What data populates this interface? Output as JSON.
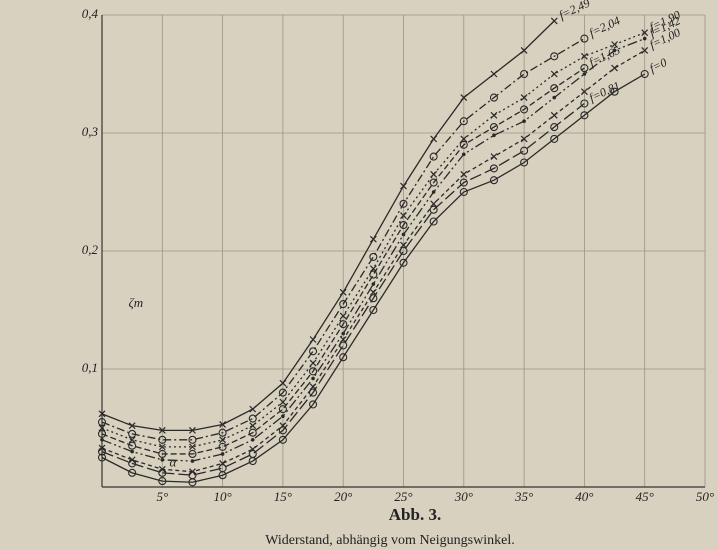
{
  "chart_data": {
    "type": "line",
    "title": "Abb. 3.",
    "subtitle": "Widerstand, abhängig vom Neigungswinkel.",
    "xlabel": "α",
    "ylabel": "ζm",
    "x": [
      0,
      2.5,
      5,
      7.5,
      10,
      12.5,
      15,
      17.5,
      20,
      22.5,
      25,
      27.5,
      30,
      32.5,
      35,
      37.5,
      40,
      42.5,
      45
    ],
    "xlim": [
      0,
      50
    ],
    "ylim": [
      0,
      0.4
    ],
    "xticks": [
      {
        "value": 5,
        "label": "5°"
      },
      {
        "value": 10,
        "label": "10°"
      },
      {
        "value": 15,
        "label": "15°"
      },
      {
        "value": 20,
        "label": "20°"
      },
      {
        "value": 25,
        "label": "25°"
      },
      {
        "value": 30,
        "label": "30°"
      },
      {
        "value": 35,
        "label": "35°"
      },
      {
        "value": 40,
        "label": "40°"
      },
      {
        "value": 45,
        "label": "45°"
      },
      {
        "value": 50,
        "label": "50°"
      }
    ],
    "yticks": [
      {
        "value": 0.1,
        "label": "0,1"
      },
      {
        "value": 0.2,
        "label": "0,2"
      },
      {
        "value": 0.3,
        "label": "0,3"
      },
      {
        "value": 0.4,
        "label": "0,4"
      }
    ],
    "grid": true,
    "series": [
      {
        "name": "f=2,49",
        "color": "#2a2a2a",
        "dash": "",
        "marker": "x",
        "values": [
          0.062,
          0.052,
          0.048,
          0.048,
          0.053,
          0.066,
          0.088,
          0.125,
          0.165,
          0.21,
          0.255,
          0.295,
          0.33,
          0.35,
          0.37,
          0.395,
          null,
          null,
          null
        ]
      },
      {
        "name": "f=2,04",
        "color": "#2a2a2a",
        "dash": "8 3 2 3",
        "marker": "circle",
        "values": [
          0.055,
          0.045,
          0.04,
          0.04,
          0.046,
          0.058,
          0.08,
          0.115,
          0.155,
          0.195,
          0.24,
          0.28,
          0.31,
          0.33,
          0.35,
          0.365,
          0.38,
          null,
          null
        ]
      },
      {
        "name": "f=1,90",
        "color": "#2a2a2a",
        "dash": "2 3",
        "marker": "x",
        "values": [
          0.05,
          0.04,
          0.034,
          0.034,
          0.04,
          0.052,
          0.072,
          0.105,
          0.145,
          0.185,
          0.23,
          0.265,
          0.295,
          0.315,
          0.33,
          0.35,
          0.365,
          0.375,
          0.385
        ]
      },
      {
        "name": "f=1,65",
        "color": "#2a2a2a",
        "dash": "6 3",
        "marker": "circle",
        "values": [
          0.045,
          0.035,
          0.028,
          0.028,
          0.034,
          0.046,
          0.066,
          0.098,
          0.138,
          0.18,
          0.222,
          0.258,
          0.29,
          0.305,
          0.32,
          0.338,
          0.355,
          null,
          null
        ]
      },
      {
        "name": "f=1,42",
        "color": "#2a2a2a",
        "dash": "10 3 2 3 2 3",
        "marker": "dot",
        "values": [
          0.04,
          0.03,
          0.023,
          0.022,
          0.028,
          0.04,
          0.06,
          0.092,
          0.13,
          0.172,
          0.214,
          0.25,
          0.282,
          0.298,
          0.31,
          0.33,
          0.35,
          0.37,
          0.38
        ]
      },
      {
        "name": "f=1,00",
        "color": "#2a2a2a",
        "dash": "4 3",
        "marker": "x",
        "values": [
          0.033,
          0.023,
          0.015,
          0.013,
          0.02,
          0.032,
          0.052,
          0.085,
          0.125,
          0.165,
          0.205,
          0.24,
          0.265,
          0.28,
          0.295,
          0.315,
          0.335,
          0.355,
          0.37
        ]
      },
      {
        "name": "f=0,81",
        "color": "#2a2a2a",
        "dash": "12 4",
        "marker": "circle",
        "values": [
          0.03,
          0.02,
          0.012,
          0.01,
          0.016,
          0.028,
          0.048,
          0.08,
          0.12,
          0.16,
          0.2,
          0.235,
          0.258,
          0.27,
          0.285,
          0.305,
          0.325,
          null,
          null
        ]
      },
      {
        "name": "f=0",
        "color": "#2a2a2a",
        "dash": "",
        "marker": "circle",
        "values": [
          0.025,
          0.012,
          0.005,
          0.004,
          0.01,
          0.022,
          0.04,
          0.07,
          0.11,
          0.15,
          0.19,
          0.225,
          0.25,
          0.26,
          0.275,
          0.295,
          0.315,
          0.335,
          0.35
        ]
      }
    ]
  }
}
